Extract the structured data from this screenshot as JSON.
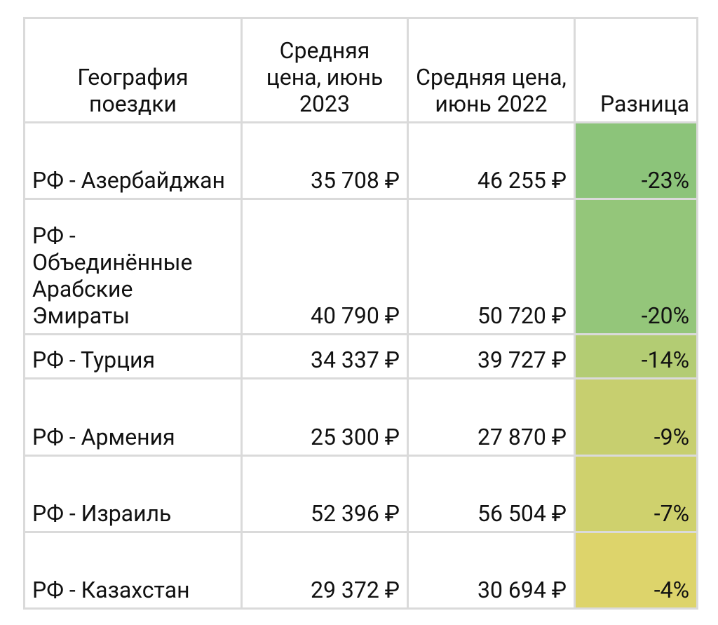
{
  "table": {
    "header": [
      "География поездки",
      "Средняя цена, июнь 2023",
      "Средняя цена, июнь 2022",
      "Разница"
    ],
    "rows": [
      [
        "РФ - Азербайджан",
        "35 708 ₽",
        "46 255 ₽",
        "-23%"
      ],
      [
        "РФ - Объединённые Арабские Эмираты",
        "40 790 ₽",
        "50 720 ₽",
        "-20%"
      ],
      [
        "РФ - Турция",
        "34 337 ₽",
        "39 727 ₽",
        "-14%"
      ],
      [
        "РФ - Армения",
        "25 300 ₽",
        "27 870 ₽",
        "-9%"
      ],
      [
        "РФ - Израиль",
        "52 396 ₽",
        "56 504 ₽",
        "-7%"
      ],
      [
        "РФ - Казахстан",
        "29 372 ₽",
        "30 694 ₽",
        "-4%"
      ]
    ],
    "difference_colors": [
      "#8cc47a",
      "#94c67a",
      "#b3cc73",
      "#c7cf6f",
      "#cfd16d",
      "#ddd46b"
    ]
  }
}
